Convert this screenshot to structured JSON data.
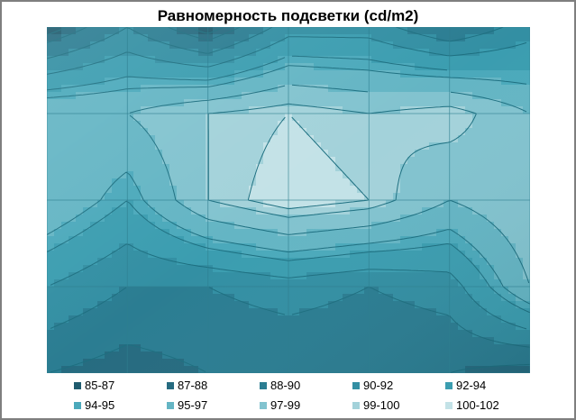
{
  "chart_data": {
    "type": "heatmap",
    "subtype": "contour-surface",
    "title": "Равномерность подсветки (cd/m2)",
    "grid": true,
    "legend_position": "bottom",
    "legend": [
      {
        "label": "85-87",
        "color": "#1f5b6e"
      },
      {
        "label": "87-88",
        "color": "#266b80"
      },
      {
        "label": "88-90",
        "color": "#2b7d92"
      },
      {
        "label": "90-92",
        "color": "#338fa3"
      },
      {
        "label": "92-94",
        "color": "#3b9db0"
      },
      {
        "label": "94-95",
        "color": "#4ba9bb"
      },
      {
        "label": "95-97",
        "color": "#64b5c4"
      },
      {
        "label": "97-99",
        "color": "#82c3cf"
      },
      {
        "label": "99-100",
        "color": "#a3d2da"
      },
      {
        "label": "100-102",
        "color": "#c3e2e7"
      }
    ],
    "columns": 7,
    "rows": 5,
    "values": [
      [
        86,
        90,
        86,
        91,
        91,
        88,
        91
      ],
      [
        97,
        97,
        99,
        100,
        99,
        100,
        97
      ],
      [
        97,
        94,
        99,
        101,
        100,
        97,
        99
      ],
      [
        92,
        90,
        90,
        91,
        90,
        91,
        97
      ],
      [
        88,
        87,
        88,
        88,
        88,
        88,
        87
      ]
    ]
  }
}
